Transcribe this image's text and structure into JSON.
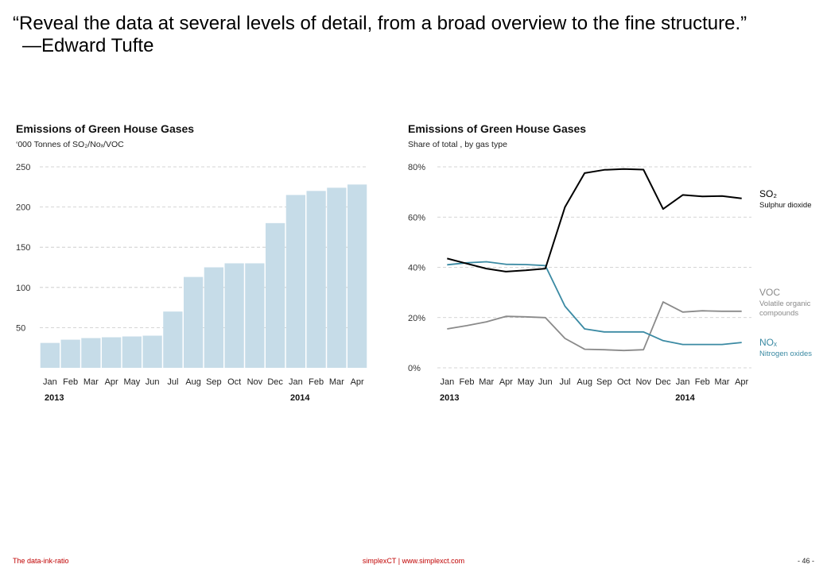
{
  "quote": {
    "text": "“Reveal the data at several levels of detail, from a broad overview to the fine structure.”",
    "author": "—Edward Tufte"
  },
  "colors": {
    "bar_fill": "#c6dce8",
    "gridline": "#c8c8c8",
    "so2": "#000000",
    "voc": "#8a8a8a",
    "nox": "#3b8aa3",
    "footer_accent": "#c00000"
  },
  "chart_data": [
    {
      "type": "bar",
      "title": "Emissions of Green House Gases",
      "subtitle": "‘000 Tonnes of SO₂/Noₓ/VOC",
      "categories": [
        "Jan",
        "Feb",
        "Mar",
        "Apr",
        "May",
        "Jun",
        "Jul",
        "Aug",
        "Sep",
        "Oct",
        "Nov",
        "Dec",
        "Jan",
        "Feb",
        "Mar",
        "Apr"
      ],
      "year_labels": [
        {
          "index": 0,
          "label": "2013"
        },
        {
          "index": 12,
          "label": "2014"
        }
      ],
      "values": [
        31,
        35,
        37,
        38,
        39,
        40,
        70,
        113,
        125,
        130,
        130,
        180,
        215,
        220,
        224,
        228
      ],
      "yticks": [
        50,
        100,
        150,
        200,
        250
      ],
      "ylim": [
        0,
        250
      ],
      "grid": true,
      "xlabel": "",
      "ylabel": ""
    },
    {
      "type": "line",
      "title": "Emissions of Green House Gases",
      "subtitle": "Share of total , by gas type",
      "categories": [
        "Jan",
        "Feb",
        "Mar",
        "Apr",
        "May",
        "Jun",
        "Jul",
        "Aug",
        "Sep",
        "Oct",
        "Nov",
        "Dec",
        "Jan",
        "Feb",
        "Mar",
        "Apr"
      ],
      "year_labels": [
        {
          "index": 0,
          "label": "2013"
        },
        {
          "index": 12,
          "label": "2014"
        }
      ],
      "yticks": [
        0,
        20,
        40,
        60,
        80
      ],
      "ytick_labels": [
        "0%",
        "20%",
        "40%",
        "60%",
        "80%"
      ],
      "ylim": [
        0,
        80
      ],
      "grid": true,
      "xlabel": "",
      "ylabel": "",
      "series": [
        {
          "key": "so2",
          "name": "SO₂",
          "description": "Sulphur dioxide",
          "values": [
            43.5,
            41.5,
            39.5,
            38.3,
            38.8,
            39.5,
            64,
            77.5,
            78.8,
            79.1,
            78.9,
            63.2,
            68.8,
            68.2,
            68.4,
            67.4
          ]
        },
        {
          "key": "voc",
          "name": "VOC",
          "description": "Volatile organic compounds",
          "values": [
            15.5,
            16.8,
            18.3,
            20.5,
            20.3,
            20.0,
            11.7,
            7.4,
            7.2,
            6.9,
            7.2,
            26.2,
            22.2,
            22.7,
            22.5,
            22.5
          ]
        },
        {
          "key": "nox",
          "name": "NOₓ",
          "description": "Nitrogen oxides",
          "values": [
            41,
            41.8,
            42.2,
            41.2,
            41.1,
            40.7,
            24.5,
            15.5,
            14.3,
            14.3,
            14.3,
            10.8,
            9.3,
            9.3,
            9.3,
            10.1
          ]
        }
      ]
    }
  ],
  "footer": {
    "left": "The data-ink-ratio",
    "center": "simplexCT  |  www.simplexct.com",
    "right": "- 46 -"
  }
}
